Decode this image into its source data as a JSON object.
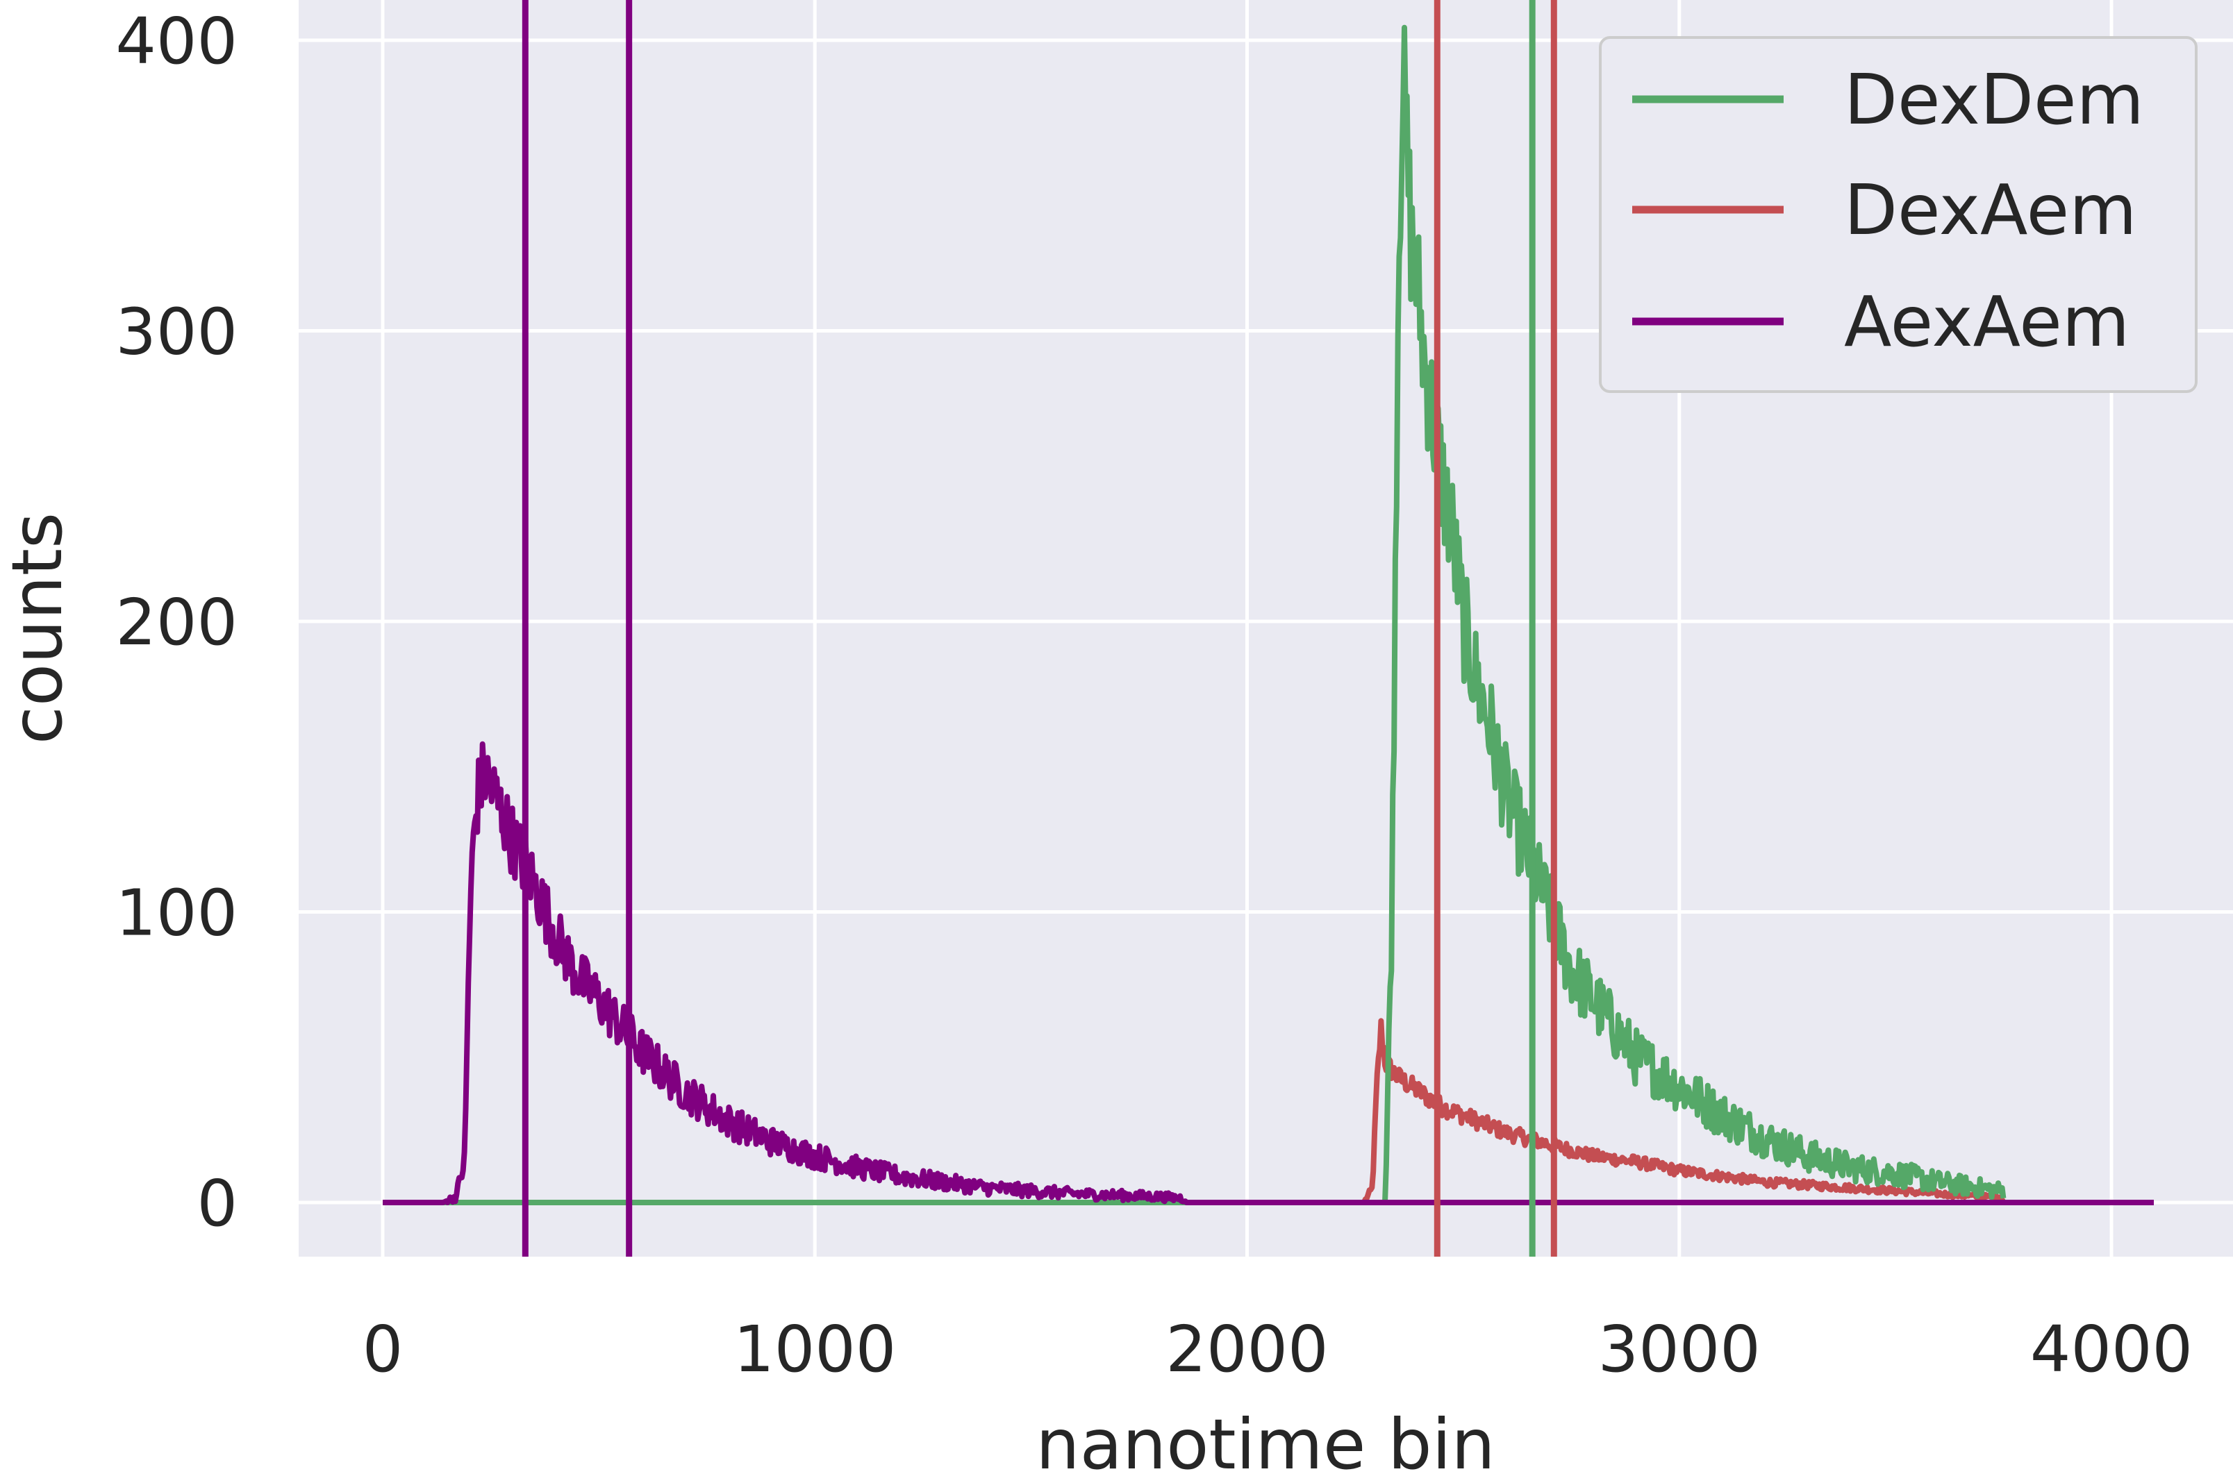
{
  "chart_data": {
    "type": "line",
    "title": "",
    "xlabel": "nanotime bin",
    "ylabel": "counts",
    "xlim": [
      -200,
      4300
    ],
    "ylim": [
      -20,
      405
    ],
    "xticks": [
      0,
      1000,
      2000,
      3000,
      4000
    ],
    "yticks": [
      0,
      100,
      200,
      300,
      400
    ],
    "xtick_labels": [
      "0",
      "1000",
      "2000",
      "3000",
      "4000"
    ],
    "ytick_labels": [
      "0",
      "100",
      "200",
      "300",
      "400"
    ],
    "grid": true,
    "legend_position": "top-right",
    "background": "#EAEAF2",
    "series": [
      {
        "name": "DexDem",
        "color": "#55A868",
        "x": [
          0,
          2300,
          2320,
          2335,
          2350,
          2360,
          2370,
          2380,
          2395,
          2410,
          2430,
          2450,
          2475,
          2500,
          2530,
          2560,
          2600,
          2650,
          2700,
          2750,
          2800,
          2850,
          2900,
          3000,
          3100,
          3200,
          3300,
          3400,
          3500,
          3600,
          3700,
          3750
        ],
        "y": [
          0,
          0,
          0,
          100,
          320,
          390,
          360,
          330,
          315,
          290,
          270,
          250,
          230,
          200,
          180,
          165,
          140,
          120,
          100,
          80,
          70,
          60,
          50,
          40,
          30,
          22,
          16,
          12,
          10,
          7,
          5,
          4
        ],
        "noise": 9
      },
      {
        "name": "DexAem",
        "color": "#C44E52",
        "x": [
          0,
          2270,
          2290,
          2300,
          2310,
          2320,
          2350,
          2400,
          2450,
          2500,
          2600,
          2700,
          2800,
          2900,
          3000,
          3100,
          3200,
          3300,
          3400,
          3500,
          3600,
          3700,
          3750
        ],
        "y": [
          0,
          0,
          5,
          40,
          60,
          48,
          43,
          38,
          33,
          30,
          24,
          20,
          16,
          14,
          11,
          9,
          7,
          6,
          5,
          4,
          3,
          2,
          2
        ],
        "noise": 3.5
      },
      {
        "name": "AexAem",
        "color": "#800080",
        "x": [
          0,
          140,
          170,
          190,
          200,
          210,
          220,
          235,
          260,
          300,
          350,
          400,
          450,
          500,
          600,
          700,
          800,
          900,
          1000,
          1100,
          1200,
          1300,
          1400,
          1500,
          1600,
          1700,
          1800,
          1850,
          1860,
          2300,
          4100
        ],
        "y": [
          0,
          0,
          2,
          15,
          90,
          125,
          140,
          148,
          140,
          125,
          110,
          92,
          78,
          70,
          52,
          38,
          28,
          21,
          16,
          12,
          9,
          7,
          5,
          4,
          3,
          2.5,
          2,
          1.5,
          0,
          0,
          0
        ],
        "noise": 7
      }
    ],
    "vertical_lines": [
      {
        "x": 330,
        "color": "#800080"
      },
      {
        "x": 570,
        "color": "#800080"
      },
      {
        "x": 2440,
        "color": "#C44E52"
      },
      {
        "x": 2710,
        "color": "#C44E52"
      },
      {
        "x": 2660,
        "color": "#55A868"
      }
    ]
  }
}
